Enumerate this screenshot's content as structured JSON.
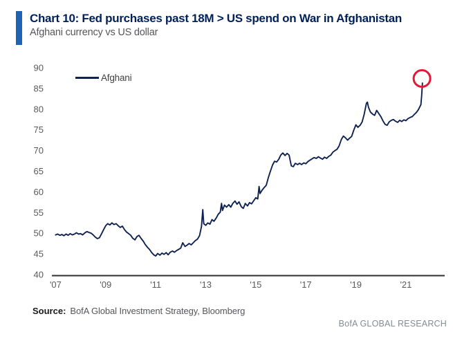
{
  "footer": {
    "source_label": "Source:",
    "source_text": "BofA Global Investment Strategy, Bloomberg",
    "brand": "BofA GLOBAL RESEARCH"
  },
  "colors": {
    "accent_bar": "#1e63b4",
    "title_navy": "#00205b",
    "subtitle_gray": "#55565a",
    "axis_text_gray": "#58595b",
    "axis_line": "#2e2e2e",
    "series_navy": "#0d2152",
    "annotation_red": "#e31837"
  },
  "chart_data": {
    "type": "line",
    "title": "Chart 10: Fed purchases past 18M > US spend on War in Afghanistan",
    "subtitle": "Afghani currency vs US dollar",
    "xlabel": "",
    "ylabel": "",
    "grid": false,
    "legend_position": "top-left",
    "x_range": [
      2006.85,
      2022.55
    ],
    "y_range": [
      40,
      90
    ],
    "y_ticks": [
      40,
      45,
      50,
      55,
      60,
      65,
      70,
      75,
      80,
      85,
      90
    ],
    "x_ticks": [
      {
        "value": 2007,
        "label": "'07"
      },
      {
        "value": 2009,
        "label": "'09"
      },
      {
        "value": 2011,
        "label": "'11"
      },
      {
        "value": 2013,
        "label": "'13"
      },
      {
        "value": 2015,
        "label": "'15"
      },
      {
        "value": 2017,
        "label": "'17"
      },
      {
        "value": 2019,
        "label": "'19"
      },
      {
        "value": 2021,
        "label": "'21"
      }
    ],
    "axis_line_color": "#2e2e2e",
    "annotation": {
      "type": "circle",
      "x": 2021.64,
      "y": 87.4,
      "radius_px": 12,
      "color": "#e31837",
      "stroke_px": 3
    },
    "series": [
      {
        "name": "Afghani",
        "color": "#0d2152",
        "points": [
          [
            2007.0,
            49.6
          ],
          [
            2007.08,
            49.8
          ],
          [
            2007.17,
            49.5
          ],
          [
            2007.25,
            49.7
          ],
          [
            2007.33,
            49.4
          ],
          [
            2007.42,
            49.8
          ],
          [
            2007.5,
            49.5
          ],
          [
            2007.58,
            49.9
          ],
          [
            2007.67,
            49.6
          ],
          [
            2007.75,
            49.8
          ],
          [
            2007.83,
            50.1
          ],
          [
            2007.92,
            49.8
          ],
          [
            2008.0,
            49.9
          ],
          [
            2008.08,
            49.6
          ],
          [
            2008.17,
            50.1
          ],
          [
            2008.25,
            50.4
          ],
          [
            2008.33,
            50.2
          ],
          [
            2008.42,
            50.0
          ],
          [
            2008.5,
            49.6
          ],
          [
            2008.58,
            49.1
          ],
          [
            2008.67,
            48.7
          ],
          [
            2008.75,
            48.9
          ],
          [
            2008.83,
            49.8
          ],
          [
            2008.92,
            50.9
          ],
          [
            2009.0,
            51.8
          ],
          [
            2009.08,
            52.3
          ],
          [
            2009.17,
            52.0
          ],
          [
            2009.25,
            52.5
          ],
          [
            2009.33,
            52.1
          ],
          [
            2009.42,
            52.3
          ],
          [
            2009.5,
            51.8
          ],
          [
            2009.58,
            51.4
          ],
          [
            2009.67,
            51.7
          ],
          [
            2009.75,
            50.9
          ],
          [
            2009.83,
            50.3
          ],
          [
            2009.92,
            49.9
          ],
          [
            2010.0,
            49.5
          ],
          [
            2010.08,
            48.8
          ],
          [
            2010.17,
            48.4
          ],
          [
            2010.25,
            49.2
          ],
          [
            2010.33,
            49.5
          ],
          [
            2010.42,
            48.7
          ],
          [
            2010.5,
            48.1
          ],
          [
            2010.58,
            47.3
          ],
          [
            2010.67,
            46.6
          ],
          [
            2010.75,
            46.1
          ],
          [
            2010.83,
            45.4
          ],
          [
            2010.92,
            44.8
          ],
          [
            2011.0,
            44.5
          ],
          [
            2011.08,
            45.1
          ],
          [
            2011.17,
            44.7
          ],
          [
            2011.25,
            45.2
          ],
          [
            2011.33,
            44.9
          ],
          [
            2011.42,
            45.3
          ],
          [
            2011.5,
            44.8
          ],
          [
            2011.58,
            45.4
          ],
          [
            2011.67,
            45.7
          ],
          [
            2011.75,
            45.4
          ],
          [
            2011.83,
            45.8
          ],
          [
            2011.92,
            46.1
          ],
          [
            2012.0,
            46.4
          ],
          [
            2012.08,
            47.7
          ],
          [
            2012.17,
            46.8
          ],
          [
            2012.25,
            47.1
          ],
          [
            2012.33,
            47.5
          ],
          [
            2012.42,
            47.2
          ],
          [
            2012.5,
            47.7
          ],
          [
            2012.58,
            48.2
          ],
          [
            2012.67,
            48.6
          ],
          [
            2012.75,
            49.4
          ],
          [
            2012.83,
            51.6
          ],
          [
            2012.88,
            55.7
          ],
          [
            2012.92,
            52.3
          ],
          [
            2013.0,
            51.9
          ],
          [
            2013.08,
            52.5
          ],
          [
            2013.17,
            52.2
          ],
          [
            2013.25,
            53.3
          ],
          [
            2013.33,
            52.9
          ],
          [
            2013.42,
            53.7
          ],
          [
            2013.5,
            54.6
          ],
          [
            2013.58,
            55.1
          ],
          [
            2013.63,
            57.2
          ],
          [
            2013.67,
            55.5
          ],
          [
            2013.75,
            56.8
          ],
          [
            2013.83,
            56.3
          ],
          [
            2013.92,
            56.9
          ],
          [
            2014.0,
            56.3
          ],
          [
            2014.08,
            57.2
          ],
          [
            2014.17,
            57.8
          ],
          [
            2014.25,
            57.0
          ],
          [
            2014.33,
            57.6
          ],
          [
            2014.42,
            56.4
          ],
          [
            2014.5,
            56.0
          ],
          [
            2014.58,
            57.2
          ],
          [
            2014.67,
            56.6
          ],
          [
            2014.75,
            57.4
          ],
          [
            2014.83,
            57.1
          ],
          [
            2014.92,
            57.9
          ],
          [
            2015.0,
            58.6
          ],
          [
            2015.08,
            58.3
          ],
          [
            2015.13,
            61.3
          ],
          [
            2015.17,
            59.6
          ],
          [
            2015.25,
            60.4
          ],
          [
            2015.33,
            61.0
          ],
          [
            2015.42,
            61.6
          ],
          [
            2015.5,
            63.4
          ],
          [
            2015.58,
            64.9
          ],
          [
            2015.67,
            66.5
          ],
          [
            2015.75,
            67.4
          ],
          [
            2015.83,
            67.2
          ],
          [
            2015.92,
            67.9
          ],
          [
            2016.0,
            68.9
          ],
          [
            2016.08,
            69.4
          ],
          [
            2016.17,
            68.8
          ],
          [
            2016.25,
            69.3
          ],
          [
            2016.33,
            68.9
          ],
          [
            2016.42,
            66.3
          ],
          [
            2016.5,
            66.1
          ],
          [
            2016.58,
            66.9
          ],
          [
            2016.67,
            66.6
          ],
          [
            2016.75,
            66.9
          ],
          [
            2016.83,
            66.6
          ],
          [
            2016.92,
            67.0
          ],
          [
            2017.0,
            66.8
          ],
          [
            2017.08,
            67.3
          ],
          [
            2017.17,
            67.7
          ],
          [
            2017.25,
            68.0
          ],
          [
            2017.33,
            68.3
          ],
          [
            2017.42,
            68.1
          ],
          [
            2017.5,
            68.5
          ],
          [
            2017.58,
            68.2
          ],
          [
            2017.67,
            67.9
          ],
          [
            2017.75,
            68.4
          ],
          [
            2017.83,
            68.1
          ],
          [
            2017.92,
            68.6
          ],
          [
            2018.0,
            68.9
          ],
          [
            2018.08,
            69.6
          ],
          [
            2018.17,
            70.0
          ],
          [
            2018.25,
            70.3
          ],
          [
            2018.33,
            71.1
          ],
          [
            2018.42,
            72.7
          ],
          [
            2018.5,
            73.5
          ],
          [
            2018.58,
            73.1
          ],
          [
            2018.67,
            72.5
          ],
          [
            2018.75,
            73.0
          ],
          [
            2018.83,
            73.4
          ],
          [
            2018.92,
            75.0
          ],
          [
            2019.0,
            76.2
          ],
          [
            2019.08,
            75.6
          ],
          [
            2019.17,
            76.1
          ],
          [
            2019.25,
            76.9
          ],
          [
            2019.33,
            78.7
          ],
          [
            2019.42,
            81.4
          ],
          [
            2019.46,
            81.7
          ],
          [
            2019.5,
            80.5
          ],
          [
            2019.58,
            79.3
          ],
          [
            2019.67,
            78.8
          ],
          [
            2019.75,
            78.5
          ],
          [
            2019.83,
            79.7
          ],
          [
            2019.92,
            78.9
          ],
          [
            2020.0,
            78.2
          ],
          [
            2020.08,
            77.2
          ],
          [
            2020.17,
            76.3
          ],
          [
            2020.25,
            76.1
          ],
          [
            2020.33,
            76.9
          ],
          [
            2020.42,
            77.3
          ],
          [
            2020.5,
            77.5
          ],
          [
            2020.58,
            77.1
          ],
          [
            2020.67,
            76.8
          ],
          [
            2020.75,
            77.3
          ],
          [
            2020.83,
            77.0
          ],
          [
            2020.92,
            77.4
          ],
          [
            2021.0,
            77.2
          ],
          [
            2021.08,
            77.7
          ],
          [
            2021.17,
            78.0
          ],
          [
            2021.25,
            78.2
          ],
          [
            2021.33,
            78.7
          ],
          [
            2021.42,
            79.2
          ],
          [
            2021.5,
            79.9
          ],
          [
            2021.55,
            80.5
          ],
          [
            2021.6,
            81.1
          ],
          [
            2021.63,
            83.3
          ],
          [
            2021.66,
            86.3
          ]
        ]
      }
    ]
  }
}
